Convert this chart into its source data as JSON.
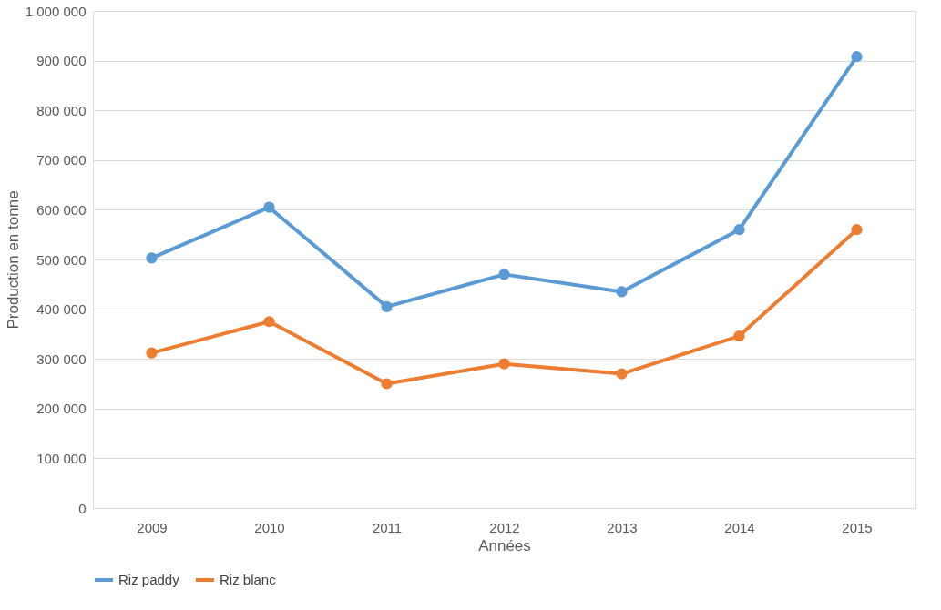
{
  "chart_data": {
    "type": "line",
    "xlabel": "Années",
    "ylabel": "Production en tonne",
    "categories": [
      "2009",
      "2010",
      "2011",
      "2012",
      "2013",
      "2014",
      "2015"
    ],
    "series": [
      {
        "name": "Riz paddy",
        "color": "#5b9bd5",
        "values": [
          503000,
          605000,
          405000,
          470000,
          435000,
          560000,
          908000
        ]
      },
      {
        "name": "Riz blanc",
        "color": "#ed7d31",
        "values": [
          312000,
          375000,
          250000,
          290000,
          270000,
          346000,
          560000
        ]
      }
    ],
    "ylim": [
      0,
      1000000
    ],
    "yticks": [
      0,
      {
        "value": 100000,
        "label": "100 000"
      },
      {
        "value": 200000,
        "label": "200 000"
      },
      {
        "value": 300000,
        "label": "300 000"
      },
      {
        "value": 400000,
        "label": "400 000"
      },
      {
        "value": 500000,
        "label": "500 000"
      },
      {
        "value": 600000,
        "label": "600 000"
      },
      {
        "value": 700000,
        "label": "700 000"
      },
      {
        "value": 800000,
        "label": "800 000"
      },
      {
        "value": 900000,
        "label": "900 000"
      },
      {
        "value": 1000000,
        "label": "1 000 000"
      }
    ],
    "grid": "y",
    "legend": "bottom",
    "marker": "circle",
    "line_style": "solid"
  }
}
